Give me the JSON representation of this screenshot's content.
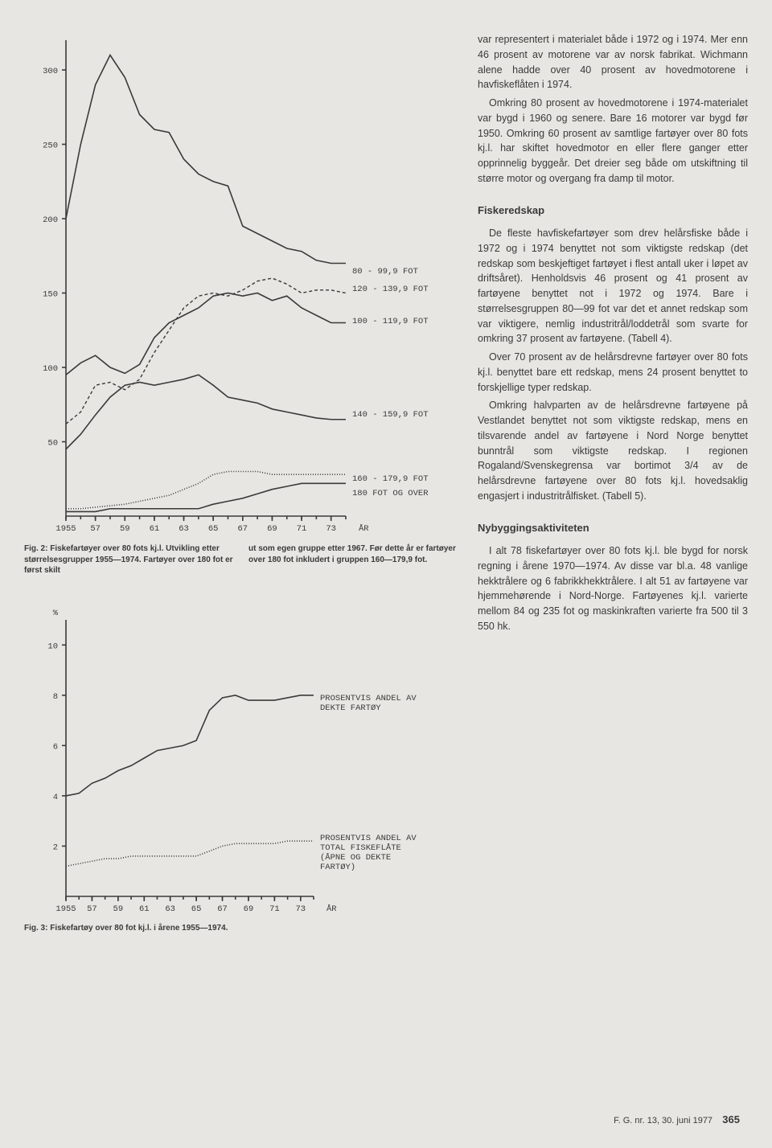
{
  "chart1": {
    "type": "line",
    "ylim": [
      0,
      320
    ],
    "ytick_values": [
      50,
      100,
      150,
      200,
      250,
      300
    ],
    "xlim": [
      1955,
      1974
    ],
    "xtick_values": [
      1955,
      57,
      59,
      61,
      63,
      65,
      67,
      69,
      71,
      73
    ],
    "xaxis_label": "ÅR",
    "background_color": "#e8e6e2",
    "line_color": "#3a3a3a",
    "series": [
      {
        "label": "80 - 99,9 FOT",
        "style": "solid",
        "data": [
          [
            1955,
            200
          ],
          [
            1956,
            250
          ],
          [
            1957,
            290
          ],
          [
            1958,
            310
          ],
          [
            1959,
            295
          ],
          [
            1960,
            270
          ],
          [
            1961,
            260
          ],
          [
            1962,
            258
          ],
          [
            1963,
            240
          ],
          [
            1964,
            230
          ],
          [
            1965,
            225
          ],
          [
            1966,
            222
          ],
          [
            1967,
            195
          ],
          [
            1968,
            190
          ],
          [
            1969,
            185
          ],
          [
            1970,
            180
          ],
          [
            1971,
            178
          ],
          [
            1972,
            172
          ],
          [
            1973,
            170
          ],
          [
            1974,
            170
          ]
        ]
      },
      {
        "label": "100 - 119,9 FOT",
        "style": "solid",
        "data": [
          [
            1955,
            95
          ],
          [
            1956,
            103
          ],
          [
            1957,
            108
          ],
          [
            1958,
            100
          ],
          [
            1959,
            96
          ],
          [
            1960,
            102
          ],
          [
            1961,
            120
          ],
          [
            1962,
            130
          ],
          [
            1963,
            135
          ],
          [
            1964,
            140
          ],
          [
            1965,
            148
          ],
          [
            1966,
            150
          ],
          [
            1967,
            148
          ],
          [
            1968,
            150
          ],
          [
            1969,
            145
          ],
          [
            1970,
            148
          ],
          [
            1971,
            140
          ],
          [
            1972,
            135
          ],
          [
            1973,
            130
          ],
          [
            1974,
            130
          ]
        ]
      },
      {
        "label": "120 - 139,9 FOT",
        "style": "dash",
        "data": [
          [
            1955,
            62
          ],
          [
            1956,
            70
          ],
          [
            1957,
            88
          ],
          [
            1958,
            90
          ],
          [
            1959,
            85
          ],
          [
            1960,
            92
          ],
          [
            1961,
            110
          ],
          [
            1962,
            125
          ],
          [
            1963,
            140
          ],
          [
            1964,
            148
          ],
          [
            1965,
            150
          ],
          [
            1966,
            148
          ],
          [
            1967,
            152
          ],
          [
            1968,
            158
          ],
          [
            1969,
            160
          ],
          [
            1970,
            156
          ],
          [
            1971,
            150
          ],
          [
            1972,
            152
          ],
          [
            1973,
            152
          ],
          [
            1974,
            150
          ]
        ]
      },
      {
        "label": "140 - 159,9 FOT",
        "style": "solid",
        "data": [
          [
            1955,
            45
          ],
          [
            1956,
            55
          ],
          [
            1957,
            68
          ],
          [
            1958,
            80
          ],
          [
            1959,
            88
          ],
          [
            1960,
            90
          ],
          [
            1961,
            88
          ],
          [
            1962,
            90
          ],
          [
            1963,
            92
          ],
          [
            1964,
            95
          ],
          [
            1965,
            88
          ],
          [
            1966,
            80
          ],
          [
            1967,
            78
          ],
          [
            1968,
            76
          ],
          [
            1969,
            72
          ],
          [
            1970,
            70
          ],
          [
            1971,
            68
          ],
          [
            1972,
            66
          ],
          [
            1973,
            65
          ],
          [
            1974,
            65
          ]
        ]
      },
      {
        "label": "160 - 179,9 FOT",
        "style": "hatch",
        "data": [
          [
            1955,
            5
          ],
          [
            1956,
            5
          ],
          [
            1957,
            6
          ],
          [
            1958,
            7
          ],
          [
            1959,
            8
          ],
          [
            1960,
            10
          ],
          [
            1961,
            12
          ],
          [
            1962,
            14
          ],
          [
            1963,
            18
          ],
          [
            1964,
            22
          ],
          [
            1965,
            28
          ],
          [
            1966,
            30
          ],
          [
            1967,
            30
          ],
          [
            1968,
            30
          ],
          [
            1969,
            28
          ],
          [
            1970,
            28
          ],
          [
            1971,
            28
          ],
          [
            1972,
            28
          ],
          [
            1973,
            28
          ],
          [
            1974,
            28
          ]
        ]
      },
      {
        "label": "180 FOT OG OVER",
        "style": "solid",
        "data": [
          [
            1955,
            3
          ],
          [
            1956,
            3
          ],
          [
            1957,
            3
          ],
          [
            1958,
            5
          ],
          [
            1959,
            5
          ],
          [
            1960,
            5
          ],
          [
            1961,
            5
          ],
          [
            1962,
            5
          ],
          [
            1963,
            5
          ],
          [
            1964,
            5
          ],
          [
            1965,
            8
          ],
          [
            1966,
            10
          ],
          [
            1967,
            12
          ],
          [
            1968,
            15
          ],
          [
            1969,
            18
          ],
          [
            1970,
            20
          ],
          [
            1971,
            22
          ],
          [
            1972,
            22
          ],
          [
            1973,
            22
          ],
          [
            1974,
            22
          ]
        ]
      }
    ],
    "caption_left": "Fig. 2: Fiskefartøyer over 80 fots kj.l. Utvikling etter størrelsesgrupper 1955—1974. Fartøyer over 180 fot er først skilt",
    "caption_right": "ut som egen gruppe etter 1967. Før dette år er fartøyer over 180 fot inkludert i gruppen 160—179,9 fot."
  },
  "chart2": {
    "type": "line",
    "ylim": [
      0,
      11
    ],
    "ytick_values": [
      2,
      4,
      6,
      8,
      10
    ],
    "ylabel": "%",
    "xlim": [
      1955,
      1974
    ],
    "xtick_values": [
      1955,
      57,
      59,
      61,
      63,
      65,
      67,
      69,
      71,
      73
    ],
    "xaxis_label": "ÅR",
    "background_color": "#e8e6e2",
    "line_color": "#3a3a3a",
    "series": [
      {
        "label": "PROSENTVIS ANDEL AV DEKTE FARTØY",
        "style": "solid",
        "data": [
          [
            1955,
            4.0
          ],
          [
            1956,
            4.1
          ],
          [
            1957,
            4.5
          ],
          [
            1958,
            4.7
          ],
          [
            1959,
            5.0
          ],
          [
            1960,
            5.2
          ],
          [
            1961,
            5.5
          ],
          [
            1962,
            5.8
          ],
          [
            1963,
            5.9
          ],
          [
            1964,
            6.0
          ],
          [
            1965,
            6.2
          ],
          [
            1966,
            7.4
          ],
          [
            1967,
            7.9
          ],
          [
            1968,
            8.0
          ],
          [
            1969,
            7.8
          ],
          [
            1970,
            7.8
          ],
          [
            1971,
            7.8
          ],
          [
            1972,
            7.9
          ],
          [
            1973,
            8.0
          ],
          [
            1974,
            8.0
          ]
        ]
      },
      {
        "label": "PROSENTVIS ANDEL AV TOTAL FISKEFLÅTE (ÅPNE OG DEKTE FARTØY)",
        "style": "hatch",
        "data": [
          [
            1955,
            1.2
          ],
          [
            1956,
            1.3
          ],
          [
            1957,
            1.4
          ],
          [
            1958,
            1.5
          ],
          [
            1959,
            1.5
          ],
          [
            1960,
            1.6
          ],
          [
            1961,
            1.6
          ],
          [
            1962,
            1.6
          ],
          [
            1963,
            1.6
          ],
          [
            1964,
            1.6
          ],
          [
            1965,
            1.6
          ],
          [
            1966,
            1.8
          ],
          [
            1967,
            2.0
          ],
          [
            1968,
            2.1
          ],
          [
            1969,
            2.1
          ],
          [
            1970,
            2.1
          ],
          [
            1971,
            2.1
          ],
          [
            1972,
            2.2
          ],
          [
            1973,
            2.2
          ],
          [
            1974,
            2.2
          ]
        ]
      }
    ],
    "caption": "Fig. 3: Fiskefartøy over 80 fot kj.l. i årene 1955—1974."
  },
  "text": {
    "p1": "var representert i materialet både i 1972 og i 1974. Mer enn 46 prosent av motorene var av norsk fabrikat. Wichmann alene hadde over 40 prosent av hovedmotorene i havfiskeflåten i 1974.",
    "p2": "Omkring 80 prosent av hovedmotorene i 1974-materialet var bygd i 1960 og senere. Bare 16 motorer var bygd før 1950. Omkring 60 prosent av samtlige fartøyer over 80 fots kj.l. har skiftet hovedmotor en eller flere ganger etter opprinnelig byggeår. Det dreier seg både om utskiftning til større motor og overgang fra damp til motor.",
    "h1": "Fiskeredskap",
    "p3": "De fleste havfiskefartøyer som drev helårsfiske både i 1972 og i 1974 benyttet not som viktigste redskap (det redskap som beskjeftiget fartøyet i flest antall uker i løpet av driftsåret). Henholdsvis 46 prosent og 41 prosent av fartøyene benyttet not i 1972 og 1974. Bare i størrelsesgruppen 80—99 fot var det et annet redskap som var viktigere, nemlig industritrål/loddetrål som svarte for omkring 37 prosent av fartøyene. (Tabell 4).",
    "p4": "Over 70 prosent av de helårsdrevne fartøyer over 80 fots kj.l. benyttet bare ett redskap, mens 24 prosent benyttet to forskjellige typer redskap.",
    "p5": "Omkring halvparten av de helårsdrevne fartøyene på Vestlandet benyttet not som viktigste redskap, mens en tilsvarende andel av fartøyene i Nord Norge benyttet bunntrål som viktigste redskap. I regionen Rogaland/Svenskegrensa var bortimot 3/4 av de helårsdrevne fartøyene over 80 fots kj.l. hovedsaklig engasjert i industritrålfisket. (Tabell 5).",
    "h2": "Nybyggingsaktiviteten",
    "p6": "I alt 78 fiskefartøyer over 80 fots kj.l. ble bygd for norsk regning i årene 1970—1974. Av disse var bl.a. 48 vanlige hekktrålere og 6 fabrikkhekktrålere. I alt 51 av fartøyene var hjemmehørende i Nord-Norge. Fartøyenes kj.l. varierte mellom 84 og 235 fot og maskinkraften varierte fra 500 til 3 550 hk."
  },
  "footer": {
    "journal": "F. G. nr. 13, 30. juni 1977",
    "page": "365"
  }
}
